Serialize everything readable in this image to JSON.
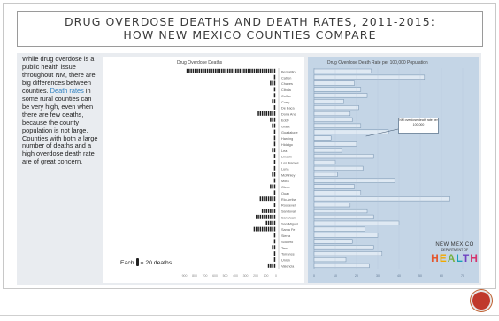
{
  "slide": {
    "title_line1": "DRUG OVERDOSE DEATHS AND DEATH RATES, 2011-2015:",
    "title_line2": "HOW NEW MEXICO COUNTIES COMPARE",
    "intro_part1": "While drug overdose is a public health issue throughout NM, there are big differences between counties. ",
    "intro_highlight": "Death rates",
    "intro_part2": " in some rural counties can be very high, even when there are few deaths, because the county population is not large. Counties with both a large number of deaths and a high overdose death rate are of great concern.",
    "legend_prefix": "Each",
    "legend_suffix": "= 20 deaths",
    "logo_name": "NEW MEXICO",
    "logo_dept": "DEPARTMENT OF",
    "logo_word": "HEALTH",
    "state_note": "NM overdose death rate per 100,000"
  },
  "chart_data": [
    {
      "type": "bar",
      "title": "Drug Overdose Deaths",
      "orientation": "horizontal-left",
      "unit_icon_deaths": 20,
      "categories": [
        "Bernalillo",
        "Catron",
        "Chaves",
        "Cibola",
        "Colfax",
        "Curry",
        "De Baca",
        "Dona Ana",
        "Eddy",
        "Grant",
        "Guadalupe",
        "Harding",
        "Hidalgo",
        "Lea",
        "Lincoln",
        "Los Alamos",
        "Luna",
        "McKinley",
        "Mora",
        "Otero",
        "Quay",
        "Rio Arriba",
        "Roosevelt",
        "Sandoval",
        "San Juan",
        "San Miguel",
        "Santa Fe",
        "Sierra",
        "Socorro",
        "Taos",
        "Torrance",
        "Union",
        "Valencia"
      ],
      "values": [
        880,
        2,
        60,
        25,
        20,
        30,
        2,
        170,
        55,
        40,
        4,
        1,
        6,
        45,
        20,
        6,
        25,
        40,
        6,
        50,
        8,
        160,
        15,
        140,
        200,
        90,
        220,
        20,
        15,
        40,
        20,
        3,
        80
      ]
    },
    {
      "type": "bar",
      "title": "Drug Overdose Death Rate per 100,000 Population",
      "orientation": "horizontal",
      "categories": [
        "Bernalillo",
        "Catron",
        "Chaves",
        "Cibola",
        "Colfax",
        "Curry",
        "De Baca",
        "Dona Ana",
        "Eddy",
        "Grant",
        "Guadalupe",
        "Harding",
        "Hidalgo",
        "Lea",
        "Lincoln",
        "Los Alamos",
        "Luna",
        "McKinley",
        "Mora",
        "Otero",
        "Quay",
        "Rio Arriba",
        "Roosevelt",
        "Sandoval",
        "San Juan",
        "San Miguel",
        "Santa Fe",
        "Sierra",
        "Socorro",
        "Taos",
        "Torrance",
        "Union",
        "Valencia"
      ],
      "values": [
        27,
        52,
        19,
        22,
        25,
        14,
        21,
        17,
        18,
        22,
        35,
        8,
        20,
        13,
        28,
        10,
        23,
        11,
        38,
        19,
        22,
        64,
        17,
        25,
        28,
        40,
        24,
        30,
        18,
        28,
        32,
        15,
        26
      ],
      "state_rate": 24
    }
  ]
}
